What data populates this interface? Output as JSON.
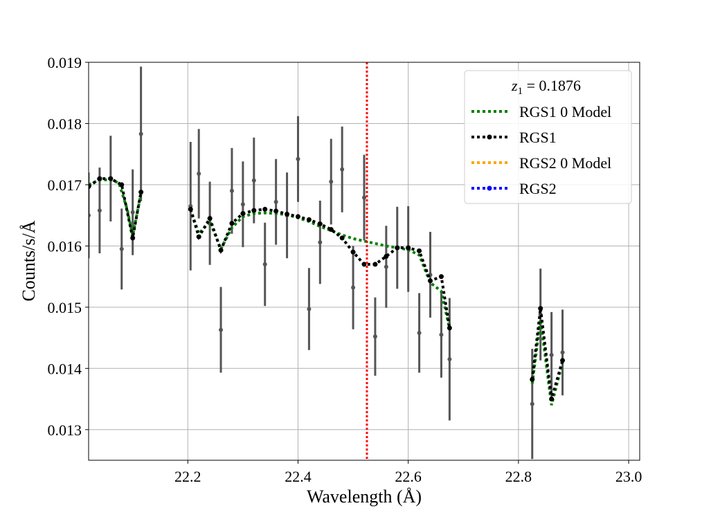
{
  "chart_data": {
    "type": "scatter",
    "xlabel": "Wavelength (Å)",
    "ylabel": "Counts/s/Å",
    "xlim": [
      22.02,
      23.02
    ],
    "ylim": [
      0.0125,
      0.019
    ],
    "x_ticks": [
      22.2,
      22.4,
      22.6,
      22.8,
      23.0
    ],
    "x_tick_labels": [
      "22.2",
      "22.4",
      "22.6",
      "22.8",
      "23.0"
    ],
    "y_ticks": [
      0.013,
      0.014,
      0.015,
      0.016,
      0.017,
      0.018,
      0.019
    ],
    "y_tick_labels": [
      "0.013",
      "0.014",
      "0.015",
      "0.016",
      "0.017",
      "0.018",
      "0.019"
    ],
    "grid": true,
    "legend_placement": "top-right",
    "legend_title_var": "z",
    "legend_title_sub": "1",
    "legend_title_eq": " = 0.1876",
    "vline": {
      "x": 22.525,
      "color": "#ff0000"
    },
    "colors": {
      "model": "#008000",
      "rgs1": "#000000",
      "rgs2_model": "#ffa500",
      "rgs2": "#0000ff",
      "data": "#555555",
      "grid": "#b0b0b0"
    },
    "legend": [
      {
        "label": "RGS1 0 Model",
        "color": "#008000",
        "marker": false
      },
      {
        "label": "RGS1",
        "color": "#000000",
        "marker": true
      },
      {
        "label": "RGS2 0 Model",
        "color": "#ffa500",
        "marker": false
      },
      {
        "label": "RGS2",
        "color": "#0000ff",
        "marker": true
      }
    ],
    "data_points": [
      {
        "x": 22.02,
        "y": 0.0165,
        "err": 0.0007
      },
      {
        "x": 22.04,
        "y": 0.01658,
        "err": 0.0007
      },
      {
        "x": 22.06,
        "y": 0.0171,
        "err": 0.0007
      },
      {
        "x": 22.08,
        "y": 0.01595,
        "err": 0.00066
      },
      {
        "x": 22.1,
        "y": 0.01655,
        "err": 0.0007
      },
      {
        "x": 22.115,
        "y": 0.01783,
        "err": 0.0011
      },
      {
        "x": 22.205,
        "y": 0.01665,
        "err": 0.00105
      },
      {
        "x": 22.22,
        "y": 0.01718,
        "err": 0.00073
      },
      {
        "x": 22.24,
        "y": 0.01637,
        "err": 0.00068
      },
      {
        "x": 22.26,
        "y": 0.01463,
        "err": 0.0007
      },
      {
        "x": 22.28,
        "y": 0.0169,
        "err": 0.0007
      },
      {
        "x": 22.3,
        "y": 0.01668,
        "err": 0.0007
      },
      {
        "x": 22.32,
        "y": 0.01707,
        "err": 0.0007
      },
      {
        "x": 22.34,
        "y": 0.0157,
        "err": 0.00068
      },
      {
        "x": 22.36,
        "y": 0.01672,
        "err": 0.0007
      },
      {
        "x": 22.38,
        "y": 0.0165,
        "err": 0.0007
      },
      {
        "x": 22.4,
        "y": 0.01742,
        "err": 0.0007
      },
      {
        "x": 22.42,
        "y": 0.01497,
        "err": 0.00067
      },
      {
        "x": 22.44,
        "y": 0.01606,
        "err": 0.00068
      },
      {
        "x": 22.46,
        "y": 0.01705,
        "err": 0.0007
      },
      {
        "x": 22.48,
        "y": 0.01725,
        "err": 0.0007
      },
      {
        "x": 22.5,
        "y": 0.01532,
        "err": 0.00068
      },
      {
        "x": 22.52,
        "y": 0.01679,
        "err": 0.0007
      },
      {
        "x": 22.54,
        "y": 0.01452,
        "err": 0.00064
      },
      {
        "x": 22.56,
        "y": 0.01566,
        "err": 0.00067
      },
      {
        "x": 22.58,
        "y": 0.01597,
        "err": 0.00067
      },
      {
        "x": 22.6,
        "y": 0.01595,
        "err": 0.0007
      },
      {
        "x": 22.62,
        "y": 0.01458,
        "err": 0.00065
      },
      {
        "x": 22.64,
        "y": 0.01553,
        "err": 0.0007
      },
      {
        "x": 22.66,
        "y": 0.01455,
        "err": 0.0007
      },
      {
        "x": 22.675,
        "y": 0.01415,
        "err": 0.001
      },
      {
        "x": 22.825,
        "y": 0.01342,
        "err": 0.0009
      },
      {
        "x": 22.84,
        "y": 0.01488,
        "err": 0.00075
      },
      {
        "x": 22.86,
        "y": 0.01422,
        "err": 0.0007
      },
      {
        "x": 22.88,
        "y": 0.01426,
        "err": 0.0007
      }
    ],
    "model_segments": [
      [
        [
          22.02,
          0.017
        ],
        [
          22.04,
          0.01708
        ],
        [
          22.06,
          0.01708
        ],
        [
          22.075,
          0.01703
        ],
        [
          22.09,
          0.0166
        ],
        [
          22.1,
          0.01617
        ],
        [
          22.115,
          0.01685
        ]
      ],
      [
        [
          22.205,
          0.0166
        ],
        [
          22.22,
          0.0162
        ],
        [
          22.24,
          0.0164
        ],
        [
          22.26,
          0.01595
        ],
        [
          22.28,
          0.0163
        ],
        [
          22.3,
          0.01648
        ],
        [
          22.32,
          0.01653
        ],
        [
          22.34,
          0.01654
        ],
        [
          22.36,
          0.01653
        ],
        [
          22.38,
          0.01651
        ],
        [
          22.4,
          0.01646
        ],
        [
          22.42,
          0.0164
        ],
        [
          22.44,
          0.01632
        ],
        [
          22.46,
          0.01625
        ],
        [
          22.48,
          0.01618
        ],
        [
          22.5,
          0.01612
        ],
        [
          22.52,
          0.01608
        ],
        [
          22.54,
          0.01604
        ],
        [
          22.56,
          0.016
        ],
        [
          22.58,
          0.01597
        ],
        [
          22.6,
          0.01594
        ],
        [
          22.62,
          0.01585
        ],
        [
          22.64,
          0.0154
        ],
        [
          22.66,
          0.01526
        ],
        [
          22.675,
          0.01465
        ]
      ],
      [
        [
          22.825,
          0.01375
        ],
        [
          22.84,
          0.0148
        ],
        [
          22.86,
          0.0134
        ],
        [
          22.88,
          0.0141
        ]
      ]
    ],
    "rgs1_segments": [
      [
        [
          22.02,
          0.01697
        ],
        [
          22.04,
          0.0171
        ],
        [
          22.06,
          0.0171
        ],
        [
          22.08,
          0.017
        ],
        [
          22.1,
          0.01613
        ],
        [
          22.115,
          0.01688
        ]
      ],
      [
        [
          22.205,
          0.0166
        ],
        [
          22.22,
          0.01615
        ],
        [
          22.24,
          0.01645
        ],
        [
          22.26,
          0.01593
        ],
        [
          22.28,
          0.01637
        ],
        [
          22.3,
          0.01653
        ],
        [
          22.32,
          0.01658
        ],
        [
          22.34,
          0.0166
        ],
        [
          22.36,
          0.01657
        ],
        [
          22.38,
          0.01652
        ],
        [
          22.4,
          0.01648
        ],
        [
          22.42,
          0.01643
        ],
        [
          22.44,
          0.01636
        ],
        [
          22.46,
          0.01627
        ],
        [
          22.48,
          0.01613
        ],
        [
          22.5,
          0.0159
        ],
        [
          22.52,
          0.0157
        ],
        [
          22.54,
          0.0157
        ],
        [
          22.56,
          0.01583
        ],
        [
          22.58,
          0.01597
        ],
        [
          22.6,
          0.01597
        ],
        [
          22.62,
          0.01592
        ],
        [
          22.64,
          0.01543
        ],
        [
          22.66,
          0.0155
        ],
        [
          22.675,
          0.01466
        ]
      ],
      [
        [
          22.825,
          0.01382
        ],
        [
          22.84,
          0.01498
        ],
        [
          22.86,
          0.0135
        ],
        [
          22.88,
          0.01413
        ]
      ]
    ]
  }
}
